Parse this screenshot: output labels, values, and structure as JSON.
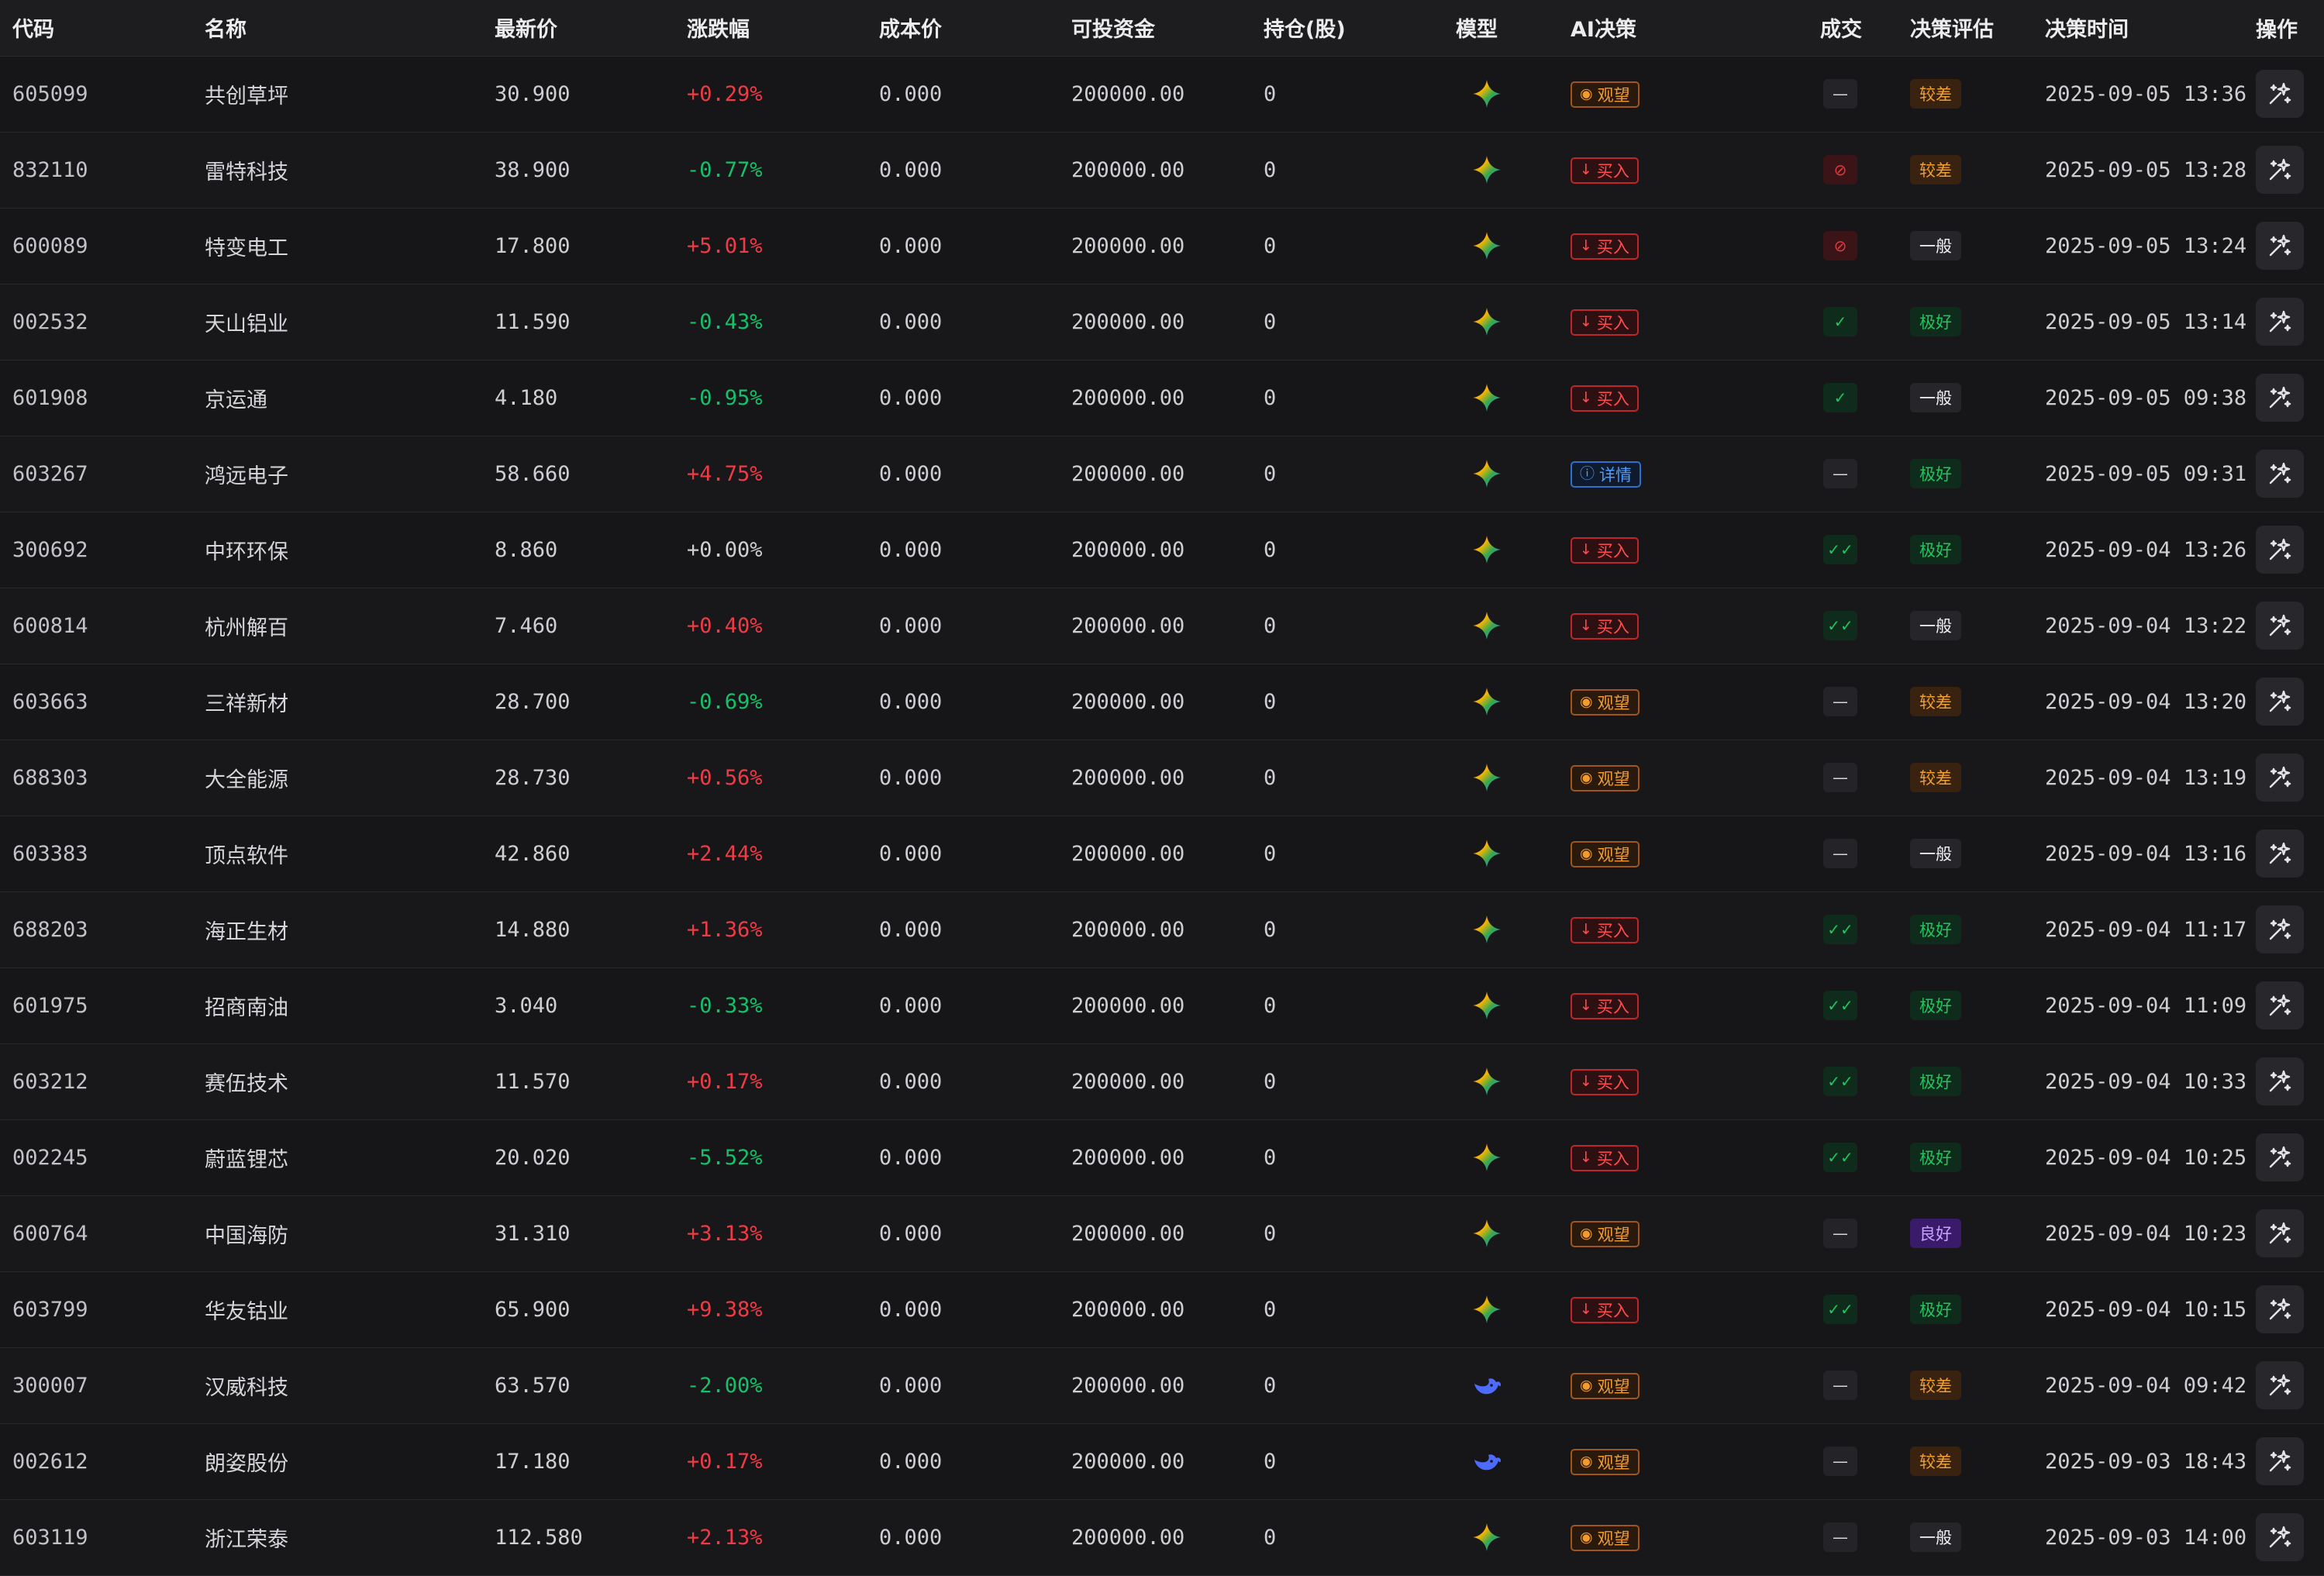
{
  "columns": [
    "代码",
    "名称",
    "最新价",
    "涨跌幅",
    "成本价",
    "可投资金",
    "持仓(股)",
    "模型",
    "AI决策",
    "成交",
    "决策评估",
    "决策时间",
    "操作"
  ],
  "labels": {
    "watch": "观望",
    "buy": "买入",
    "detail": "详情"
  },
  "colors": {
    "up": "#ef3b46",
    "down": "#16c06a",
    "accent_blue": "#4f9cff"
  },
  "rows": [
    {
      "code": "605099",
      "name": "共创草坪",
      "price": "30.900",
      "change": "+0.29%",
      "trend": "up",
      "cost": "0.000",
      "funds": "200000.00",
      "shares": "0",
      "model": "gemini-icon",
      "decision": "watch",
      "deal": "none",
      "eval": "较差",
      "eval_class": "bad",
      "time": "2025-09-05 13:36"
    },
    {
      "code": "832110",
      "name": "雷特科技",
      "price": "38.900",
      "change": "-0.77%",
      "trend": "down",
      "cost": "0.000",
      "funds": "200000.00",
      "shares": "0",
      "model": "gemini-icon",
      "decision": "buy",
      "deal": "no",
      "eval": "较差",
      "eval_class": "bad",
      "time": "2025-09-05 13:28"
    },
    {
      "code": "600089",
      "name": "特变电工",
      "price": "17.800",
      "change": "+5.01%",
      "trend": "up",
      "cost": "0.000",
      "funds": "200000.00",
      "shares": "0",
      "model": "gemini-icon",
      "decision": "buy",
      "deal": "no",
      "eval": "一般",
      "eval_class": "mid",
      "time": "2025-09-05 13:24"
    },
    {
      "code": "002532",
      "name": "天山铝业",
      "price": "11.590",
      "change": "-0.43%",
      "trend": "down",
      "cost": "0.000",
      "funds": "200000.00",
      "shares": "0",
      "model": "gemini-icon",
      "decision": "buy",
      "deal": "ok",
      "eval": "极好",
      "eval_class": "good",
      "time": "2025-09-05 13:14"
    },
    {
      "code": "601908",
      "name": "京运通",
      "price": "4.180",
      "change": "-0.95%",
      "trend": "down",
      "cost": "0.000",
      "funds": "200000.00",
      "shares": "0",
      "model": "gemini-icon",
      "decision": "buy",
      "deal": "ok",
      "eval": "一般",
      "eval_class": "mid",
      "time": "2025-09-05 09:38"
    },
    {
      "code": "603267",
      "name": "鸿远电子",
      "price": "58.660",
      "change": "+4.75%",
      "trend": "up",
      "cost": "0.000",
      "funds": "200000.00",
      "shares": "0",
      "model": "gemini-icon",
      "decision": "detail",
      "deal": "none",
      "eval": "极好",
      "eval_class": "good",
      "time": "2025-09-05 09:31"
    },
    {
      "code": "300692",
      "name": "中环环保",
      "price": "8.860",
      "change": "+0.00%",
      "trend": "flat",
      "cost": "0.000",
      "funds": "200000.00",
      "shares": "0",
      "model": "gemini-icon",
      "decision": "buy",
      "deal": "ok2",
      "eval": "极好",
      "eval_class": "good",
      "time": "2025-09-04 13:26"
    },
    {
      "code": "600814",
      "name": "杭州解百",
      "price": "7.460",
      "change": "+0.40%",
      "trend": "up",
      "cost": "0.000",
      "funds": "200000.00",
      "shares": "0",
      "model": "gemini-icon",
      "decision": "buy",
      "deal": "ok2",
      "eval": "一般",
      "eval_class": "mid",
      "time": "2025-09-04 13:22"
    },
    {
      "code": "603663",
      "name": "三祥新材",
      "price": "28.700",
      "change": "-0.69%",
      "trend": "down",
      "cost": "0.000",
      "funds": "200000.00",
      "shares": "0",
      "model": "gemini-icon",
      "decision": "watch",
      "deal": "none",
      "eval": "较差",
      "eval_class": "bad",
      "time": "2025-09-04 13:20"
    },
    {
      "code": "688303",
      "name": "大全能源",
      "price": "28.730",
      "change": "+0.56%",
      "trend": "up",
      "cost": "0.000",
      "funds": "200000.00",
      "shares": "0",
      "model": "gemini-icon",
      "decision": "watch",
      "deal": "none",
      "eval": "较差",
      "eval_class": "bad",
      "time": "2025-09-04 13:19"
    },
    {
      "code": "603383",
      "name": "顶点软件",
      "price": "42.860",
      "change": "+2.44%",
      "trend": "up",
      "cost": "0.000",
      "funds": "200000.00",
      "shares": "0",
      "model": "gemini-icon",
      "decision": "watch",
      "deal": "none",
      "eval": "一般",
      "eval_class": "mid",
      "time": "2025-09-04 13:16"
    },
    {
      "code": "688203",
      "name": "海正生材",
      "price": "14.880",
      "change": "+1.36%",
      "trend": "up",
      "cost": "0.000",
      "funds": "200000.00",
      "shares": "0",
      "model": "gemini-icon",
      "decision": "buy",
      "deal": "ok2",
      "eval": "极好",
      "eval_class": "good",
      "time": "2025-09-04 11:17"
    },
    {
      "code": "601975",
      "name": "招商南油",
      "price": "3.040",
      "change": "-0.33%",
      "trend": "down",
      "cost": "0.000",
      "funds": "200000.00",
      "shares": "0",
      "model": "gemini-icon",
      "decision": "buy",
      "deal": "ok2",
      "eval": "极好",
      "eval_class": "good",
      "time": "2025-09-04 11:09"
    },
    {
      "code": "603212",
      "name": "赛伍技术",
      "price": "11.570",
      "change": "+0.17%",
      "trend": "up",
      "cost": "0.000",
      "funds": "200000.00",
      "shares": "0",
      "model": "gemini-icon",
      "decision": "buy",
      "deal": "ok2",
      "eval": "极好",
      "eval_class": "good",
      "time": "2025-09-04 10:33"
    },
    {
      "code": "002245",
      "name": "蔚蓝锂芯",
      "price": "20.020",
      "change": "-5.52%",
      "trend": "down",
      "cost": "0.000",
      "funds": "200000.00",
      "shares": "0",
      "model": "gemini-icon",
      "decision": "buy",
      "deal": "ok2",
      "eval": "极好",
      "eval_class": "good",
      "time": "2025-09-04 10:25"
    },
    {
      "code": "600764",
      "name": "中国海防",
      "price": "31.310",
      "change": "+3.13%",
      "trend": "up",
      "cost": "0.000",
      "funds": "200000.00",
      "shares": "0",
      "model": "gemini-icon",
      "decision": "watch",
      "deal": "none",
      "eval": "良好",
      "eval_class": "fine",
      "time": "2025-09-04 10:23"
    },
    {
      "code": "603799",
      "name": "华友钴业",
      "price": "65.900",
      "change": "+9.38%",
      "trend": "up",
      "cost": "0.000",
      "funds": "200000.00",
      "shares": "0",
      "model": "gemini-icon",
      "decision": "buy",
      "deal": "ok2",
      "eval": "极好",
      "eval_class": "good",
      "time": "2025-09-04 10:15"
    },
    {
      "code": "300007",
      "name": "汉威科技",
      "price": "63.570",
      "change": "-2.00%",
      "trend": "down",
      "cost": "0.000",
      "funds": "200000.00",
      "shares": "0",
      "model": "whale-icon",
      "decision": "watch",
      "deal": "none",
      "eval": "较差",
      "eval_class": "bad",
      "time": "2025-09-04 09:42"
    },
    {
      "code": "002612",
      "name": "朗姿股份",
      "price": "17.180",
      "change": "+0.17%",
      "trend": "up",
      "cost": "0.000",
      "funds": "200000.00",
      "shares": "0",
      "model": "whale-icon",
      "decision": "watch",
      "deal": "none",
      "eval": "较差",
      "eval_class": "bad",
      "time": "2025-09-03 18:43"
    },
    {
      "code": "603119",
      "name": "浙江荣泰",
      "price": "112.580",
      "change": "+2.13%",
      "trend": "up",
      "cost": "0.000",
      "funds": "200000.00",
      "shares": "0",
      "model": "gemini-icon",
      "decision": "watch",
      "deal": "none",
      "eval": "一般",
      "eval_class": "mid",
      "time": "2025-09-03 14:00"
    }
  ]
}
